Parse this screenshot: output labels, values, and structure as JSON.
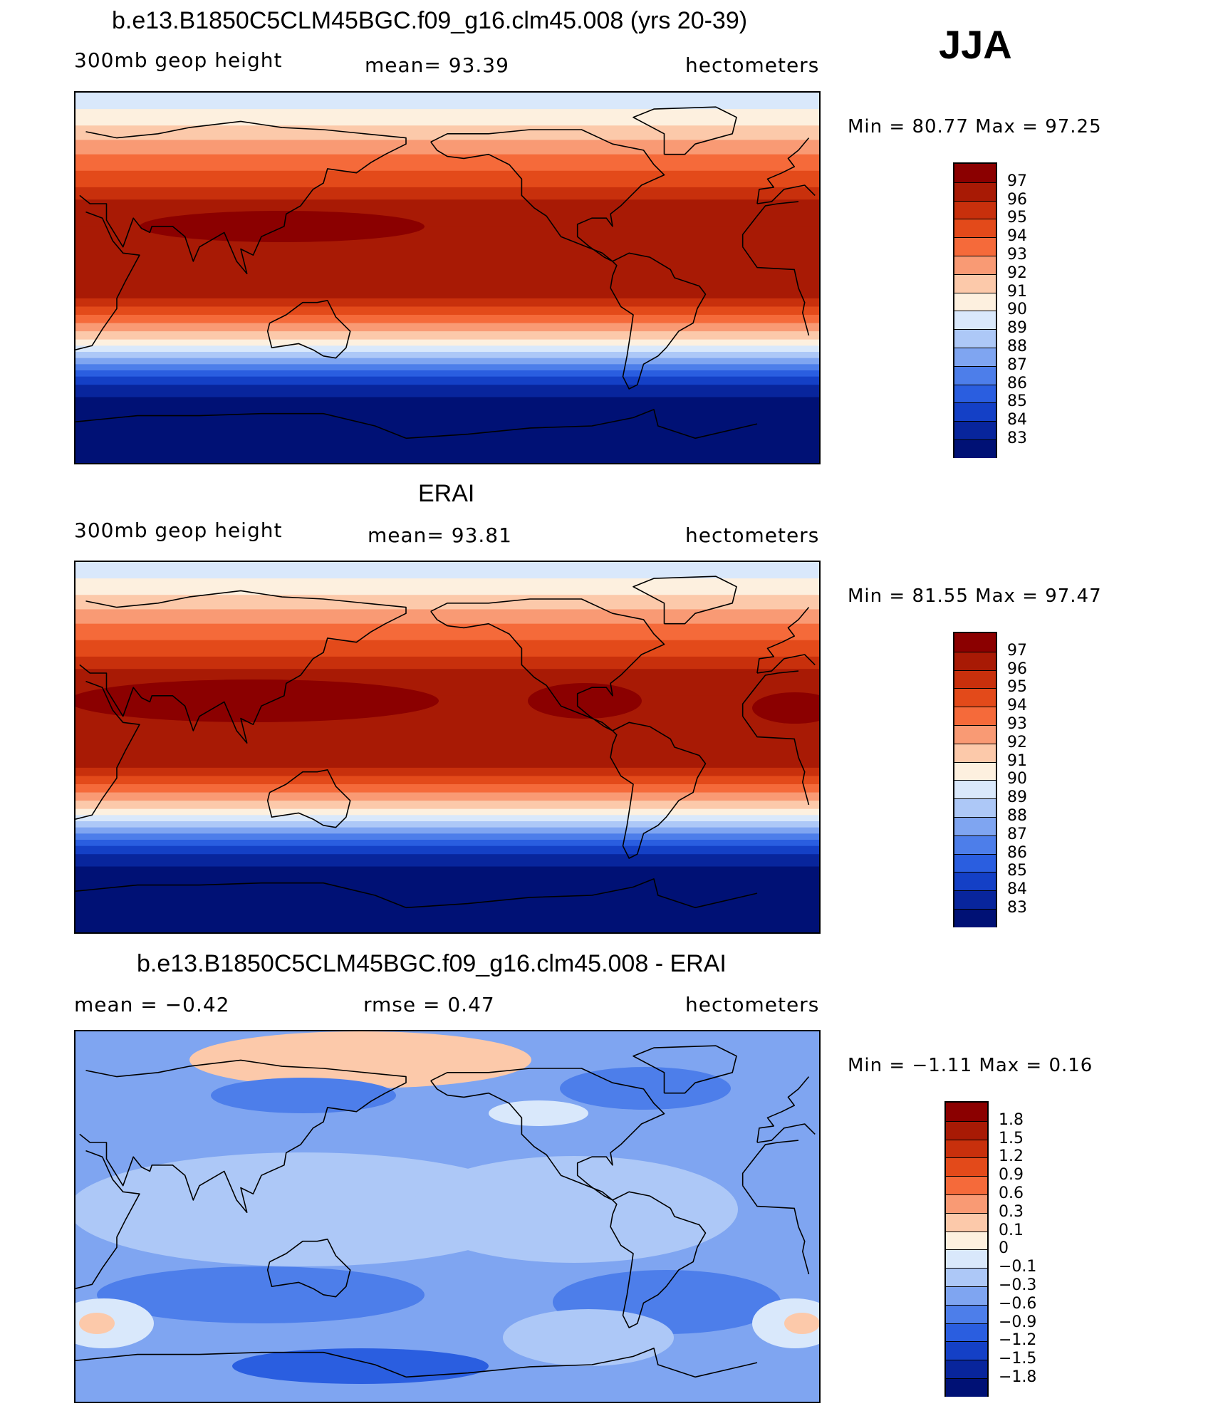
{
  "season": "JJA",
  "panels": [
    {
      "title": "b.e13.B1850C5CLM45BGC.f09_g16.clm45.008 (yrs 20-39)",
      "left_label": "300mb  geop  height",
      "center_label": "mean=   93.39",
      "right_label": "hectometers",
      "minmax": "Min  =    80.77  Max  =    97.25",
      "legend_levels": [
        "97",
        "96",
        "95",
        "94",
        "93",
        "92",
        "91",
        "90",
        "89",
        "88",
        "87",
        "86",
        "85",
        "84",
        "83"
      ],
      "legend_colors": [
        "#8b0000",
        "#a81a05",
        "#c8300c",
        "#e34a1a",
        "#f56a3a",
        "#f99a74",
        "#fcc9aa",
        "#fdf0df",
        "#d9e8fb",
        "#adc8f7",
        "#7fa5f1",
        "#4d7eea",
        "#2a5ee0",
        "#1440c6",
        "#08259c",
        "#001175"
      ],
      "field": "model"
    },
    {
      "title": "ERAI",
      "left_label": "300mb  geop  height",
      "center_label": "mean=   93.81",
      "right_label": "hectometers",
      "minmax": "Min  =    81.55  Max  =    97.47",
      "legend_levels": [
        "97",
        "96",
        "95",
        "94",
        "93",
        "92",
        "91",
        "90",
        "89",
        "88",
        "87",
        "86",
        "85",
        "84",
        "83"
      ],
      "legend_colors": [
        "#8b0000",
        "#a81a05",
        "#c8300c",
        "#e34a1a",
        "#f56a3a",
        "#f99a74",
        "#fcc9aa",
        "#fdf0df",
        "#d9e8fb",
        "#adc8f7",
        "#7fa5f1",
        "#4d7eea",
        "#2a5ee0",
        "#1440c6",
        "#08259c",
        "#001175"
      ],
      "field": "obs"
    },
    {
      "title": "b.e13.B1850C5CLM45BGC.f09_g16.clm45.008 - ERAI",
      "left_label": "mean  =    −0.42",
      "center_label": "rmse  =     0.47",
      "right_label": "hectometers",
      "minmax": "Min  =    −1.11  Max  =      0.16",
      "legend_levels": [
        "1.8",
        "1.5",
        "1.2",
        "0.9",
        "0.6",
        "0.3",
        "0.1",
        "0",
        "−0.1",
        "−0.3",
        "−0.6",
        "−0.9",
        "−1.2",
        "−1.5",
        "−1.8"
      ],
      "legend_colors": [
        "#8b0000",
        "#a81a05",
        "#c8300c",
        "#e34a1a",
        "#f56a3a",
        "#f99a74",
        "#fcc9aa",
        "#fdf0df",
        "#d9e8fb",
        "#adc8f7",
        "#7fa5f1",
        "#4d7eea",
        "#2a5ee0",
        "#1440c6",
        "#08259c",
        "#001175"
      ],
      "field": "diff"
    }
  ]
}
